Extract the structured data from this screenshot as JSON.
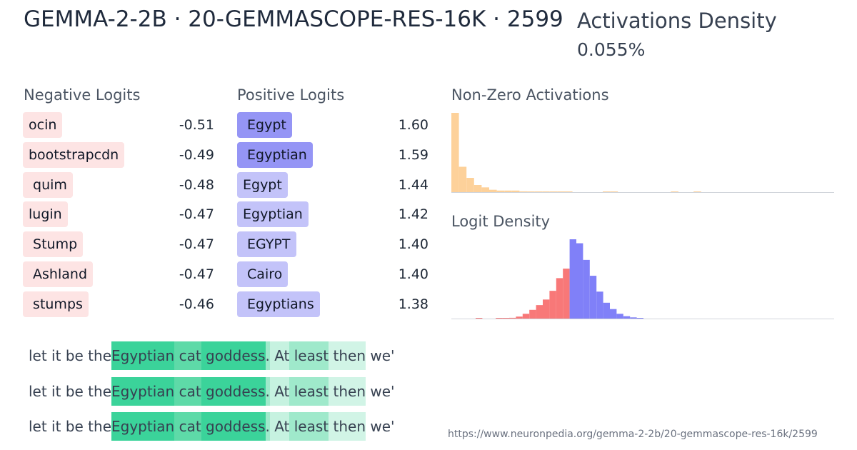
{
  "header": {
    "title": "GEMMA-2-2B · 20-GEMMASCOPE-RES-16K · 2599",
    "density_label": "Activations Density",
    "density_value": "0.055%"
  },
  "negative_logits": {
    "heading": "Negative Logits",
    "items": [
      {
        "token": "ocin",
        "value": "-0.51"
      },
      {
        "token": "bootstrapcdn",
        "value": "-0.49"
      },
      {
        "token": " quim",
        "value": "-0.48"
      },
      {
        "token": "lugin",
        "value": "-0.47"
      },
      {
        "token": " Stump",
        "value": "-0.47"
      },
      {
        "token": " Ashland",
        "value": "-0.47"
      },
      {
        "token": " stumps",
        "value": "-0.46"
      }
    ]
  },
  "positive_logits": {
    "heading": "Positive Logits",
    "items": [
      {
        "token": " Egypt",
        "value": "1.60",
        "color": "#9595f5"
      },
      {
        "token": " Egyptian",
        "value": "1.59",
        "color": "#9595f5"
      },
      {
        "token": "Egypt",
        "value": "1.44",
        "color": "#c3c3f9"
      },
      {
        "token": "Egyptian",
        "value": "1.42",
        "color": "#c3c3f9"
      },
      {
        "token": " EGYPT",
        "value": "1.40",
        "color": "#c3c3f9"
      },
      {
        "token": " Cairo",
        "value": "1.40",
        "color": "#c3c3f9"
      },
      {
        "token": " Egyptians",
        "value": "1.38",
        "color": "#c3c3f9"
      }
    ]
  },
  "activations_chart": {
    "title": "Non-Zero Activations",
    "color": "#fdd19a",
    "values": [
      100,
      32,
      18,
      9,
      6,
      3,
      2,
      2,
      2,
      1,
      0.5,
      0.5,
      0.5,
      0.5,
      0.5,
      0.5,
      0,
      0,
      0,
      0,
      0.8,
      0.5,
      0,
      0,
      0,
      0,
      0,
      0,
      0,
      0.5,
      0,
      0,
      0.8
    ]
  },
  "logit_density_chart": {
    "title": "Logit Density",
    "negative_color": "#f87878",
    "positive_color": "#8080f8",
    "negative_values": [
      0.5,
      0,
      0,
      0.5,
      0.5,
      1,
      2.5,
      6,
      11,
      17,
      24,
      35,
      51,
      63
    ],
    "positive_values": [
      100,
      95,
      74,
      54,
      34,
      20,
      12,
      6,
      3,
      1.5,
      0.5
    ]
  },
  "examples": [
    {
      "tokens": [
        {
          "text": "let",
          "color": ""
        },
        {
          "text": " it",
          "color": ""
        },
        {
          "text": " be",
          "color": ""
        },
        {
          "text": " the",
          "color": ""
        },
        {
          "text": "Egyptian",
          "color": "#3bd39a"
        },
        {
          "text": " cat",
          "color": "#5edaa8"
        },
        {
          "text": " goddess",
          "color": "#3bd39a"
        },
        {
          "text": ".",
          "color": "#9fe9cb"
        },
        {
          "text": " At",
          "color": "#c6f2e0"
        },
        {
          "text": " least",
          "color": "#9fe9cb"
        },
        {
          "text": " then",
          "color": "#d1f4e6"
        },
        {
          "text": " we'",
          "color": ""
        }
      ]
    },
    {
      "tokens": [
        {
          "text": "let",
          "color": ""
        },
        {
          "text": " it",
          "color": ""
        },
        {
          "text": " be",
          "color": ""
        },
        {
          "text": " the",
          "color": ""
        },
        {
          "text": "Egyptian",
          "color": "#3bd39a"
        },
        {
          "text": " cat",
          "color": "#5edaa8"
        },
        {
          "text": " goddess",
          "color": "#3bd39a"
        },
        {
          "text": ".",
          "color": "#9fe9cb"
        },
        {
          "text": " At",
          "color": "#c6f2e0"
        },
        {
          "text": " least",
          "color": "#9fe9cb"
        },
        {
          "text": " then",
          "color": "#d1f4e6"
        },
        {
          "text": " we'",
          "color": ""
        }
      ]
    },
    {
      "tokens": [
        {
          "text": "let",
          "color": ""
        },
        {
          "text": " it",
          "color": ""
        },
        {
          "text": " be",
          "color": ""
        },
        {
          "text": " the",
          "color": ""
        },
        {
          "text": "Egyptian",
          "color": "#3bd39a"
        },
        {
          "text": " cat",
          "color": "#5edaa8"
        },
        {
          "text": " goddess",
          "color": "#3bd39a"
        },
        {
          "text": ".",
          "color": "#9fe9cb"
        },
        {
          "text": " At",
          "color": "#c6f2e0"
        },
        {
          "text": " least",
          "color": "#9fe9cb"
        },
        {
          "text": " then",
          "color": "#d1f4e6"
        },
        {
          "text": " we'",
          "color": ""
        }
      ]
    }
  ],
  "footer": {
    "url": "https://www.neuronpedia.org/gemma-2-2b/20-gemmascope-res-16k/2599"
  }
}
